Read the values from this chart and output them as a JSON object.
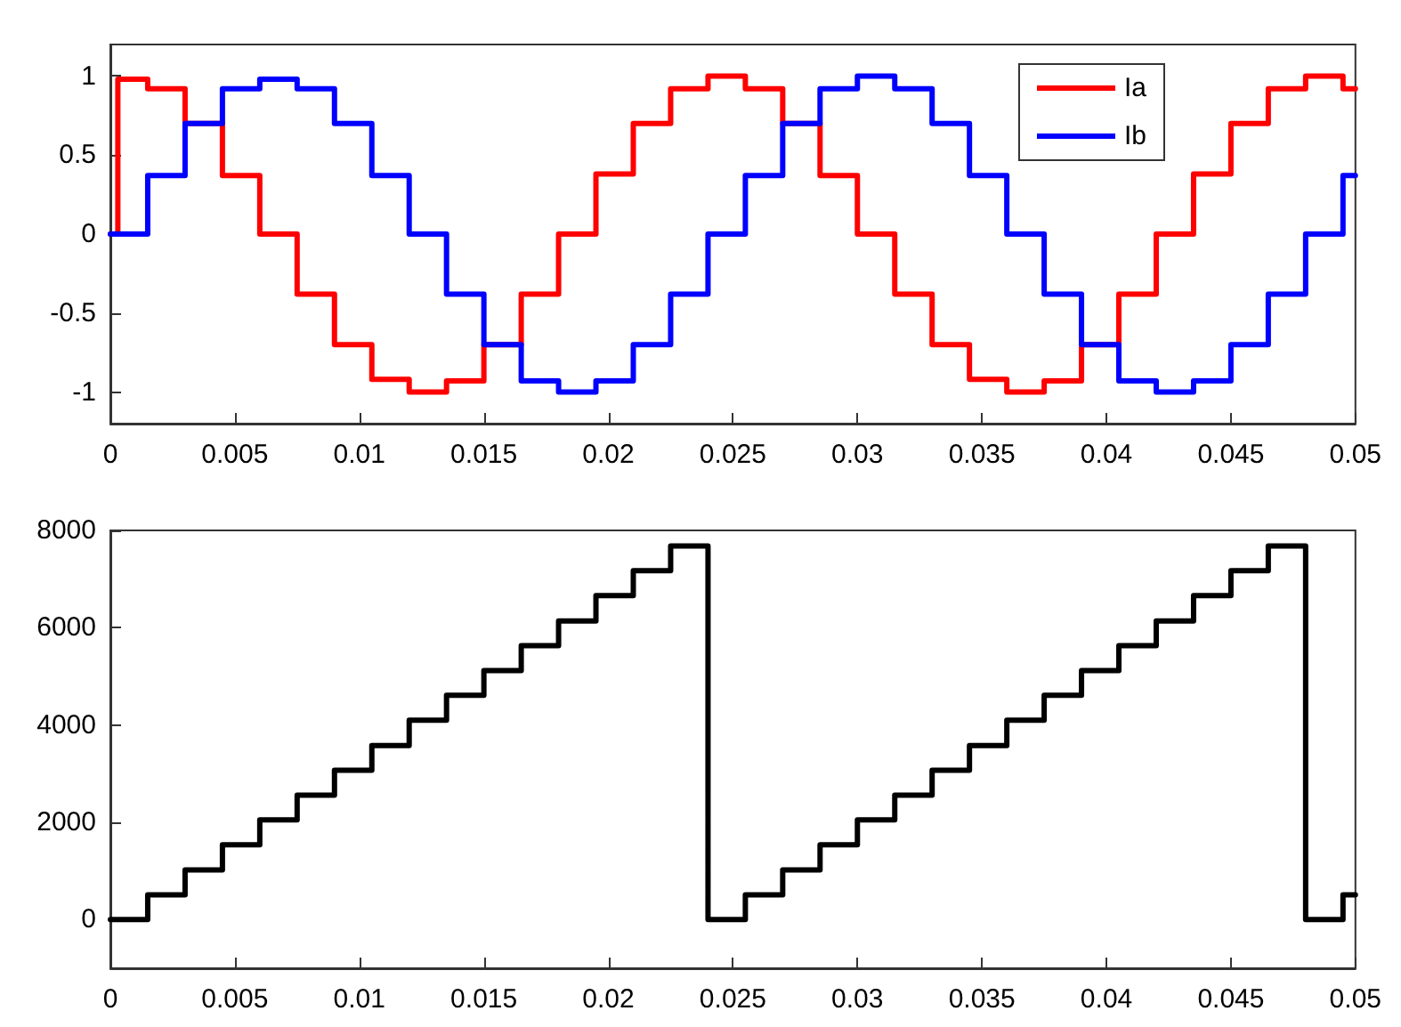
{
  "chart_data": [
    {
      "type": "step",
      "legend": "top right",
      "line_style": "solid",
      "marker": "none",
      "grid": false,
      "xlim": [
        0,
        0.05
      ],
      "xticks": [
        0,
        0.005,
        0.01,
        0.015,
        0.02,
        0.025,
        0.03,
        0.035,
        0.04,
        0.045,
        0.05
      ],
      "ylim": [
        -1.2,
        1.2
      ],
      "yticks": [
        -1,
        -0.5,
        0,
        0.5,
        1
      ],
      "series": [
        {
          "name": "Ia",
          "color": "#ff0000",
          "x": [
            0,
            0.0003,
            0.0015,
            0.003,
            0.0045,
            0.006,
            0.0075,
            0.009,
            0.0105,
            0.012,
            0.0135,
            0.015,
            0.0165,
            0.018,
            0.0195,
            0.021,
            0.0225,
            0.024,
            0.0255,
            0.027,
            0.0285,
            0.03,
            0.0315,
            0.033,
            0.0345,
            0.036,
            0.0375,
            0.039,
            0.0405,
            0.042,
            0.0435,
            0.045,
            0.0465,
            0.048,
            0.0495,
            0.05
          ],
          "values": [
            0,
            0.98,
            0.92,
            0.7,
            0.37,
            0,
            -0.38,
            -0.7,
            -0.92,
            -1,
            -0.93,
            -0.7,
            -0.38,
            0,
            0.38,
            0.7,
            0.92,
            1,
            0.92,
            0.7,
            0.37,
            0,
            -0.38,
            -0.7,
            -0.92,
            -1,
            -0.93,
            -0.7,
            -0.38,
            0,
            0.38,
            0.7,
            0.92,
            1,
            0.92,
            0.92
          ]
        },
        {
          "name": "Ib",
          "color": "#0000ff",
          "x": [
            0,
            0.0015,
            0.003,
            0.0045,
            0.006,
            0.0075,
            0.009,
            0.0105,
            0.012,
            0.0135,
            0.015,
            0.0165,
            0.018,
            0.0195,
            0.021,
            0.0225,
            0.024,
            0.0255,
            0.027,
            0.0285,
            0.03,
            0.0315,
            0.033,
            0.0345,
            0.036,
            0.0375,
            0.039,
            0.0405,
            0.042,
            0.0435,
            0.045,
            0.0465,
            0.048,
            0.0495,
            0.05
          ],
          "values": [
            0,
            0.37,
            0.7,
            0.92,
            0.98,
            0.92,
            0.7,
            0.37,
            0,
            -0.38,
            -0.7,
            -0.93,
            -1,
            -0.93,
            -0.7,
            -0.38,
            0,
            0.37,
            0.7,
            0.92,
            1,
            0.92,
            0.7,
            0.37,
            0,
            -0.38,
            -0.7,
            -0.93,
            -1,
            -0.93,
            -0.7,
            -0.38,
            0,
            0.37,
            0.37
          ]
        }
      ]
    },
    {
      "type": "step",
      "legend": false,
      "line_style": "solid",
      "marker": "none",
      "grid": false,
      "xlim": [
        0,
        0.05
      ],
      "xticks": [
        0,
        0.005,
        0.01,
        0.015,
        0.02,
        0.025,
        0.03,
        0.035,
        0.04,
        0.045,
        0.05
      ],
      "ylim": [
        -1000,
        8000
      ],
      "yticks": [
        0,
        2000,
        4000,
        6000,
        8000
      ],
      "series": [
        {
          "color": "#000000",
          "x": [
            0,
            0.0015,
            0.003,
            0.0045,
            0.006,
            0.0075,
            0.009,
            0.0105,
            0.012,
            0.0135,
            0.015,
            0.0165,
            0.018,
            0.0195,
            0.021,
            0.0225,
            0.024,
            0.0255,
            0.027,
            0.0285,
            0.03,
            0.0315,
            0.033,
            0.0345,
            0.036,
            0.0375,
            0.039,
            0.0405,
            0.042,
            0.0435,
            0.045,
            0.0465,
            0.048,
            0.0495,
            0.05
          ],
          "values": [
            0,
            510,
            1020,
            1540,
            2050,
            2560,
            3070,
            3580,
            4100,
            4610,
            5120,
            5630,
            6140,
            6660,
            7170,
            7680,
            0,
            510,
            1020,
            1540,
            2050,
            2560,
            3070,
            3580,
            4100,
            4610,
            5120,
            5630,
            6140,
            6660,
            7170,
            7680,
            0,
            510,
            510
          ]
        }
      ]
    }
  ]
}
